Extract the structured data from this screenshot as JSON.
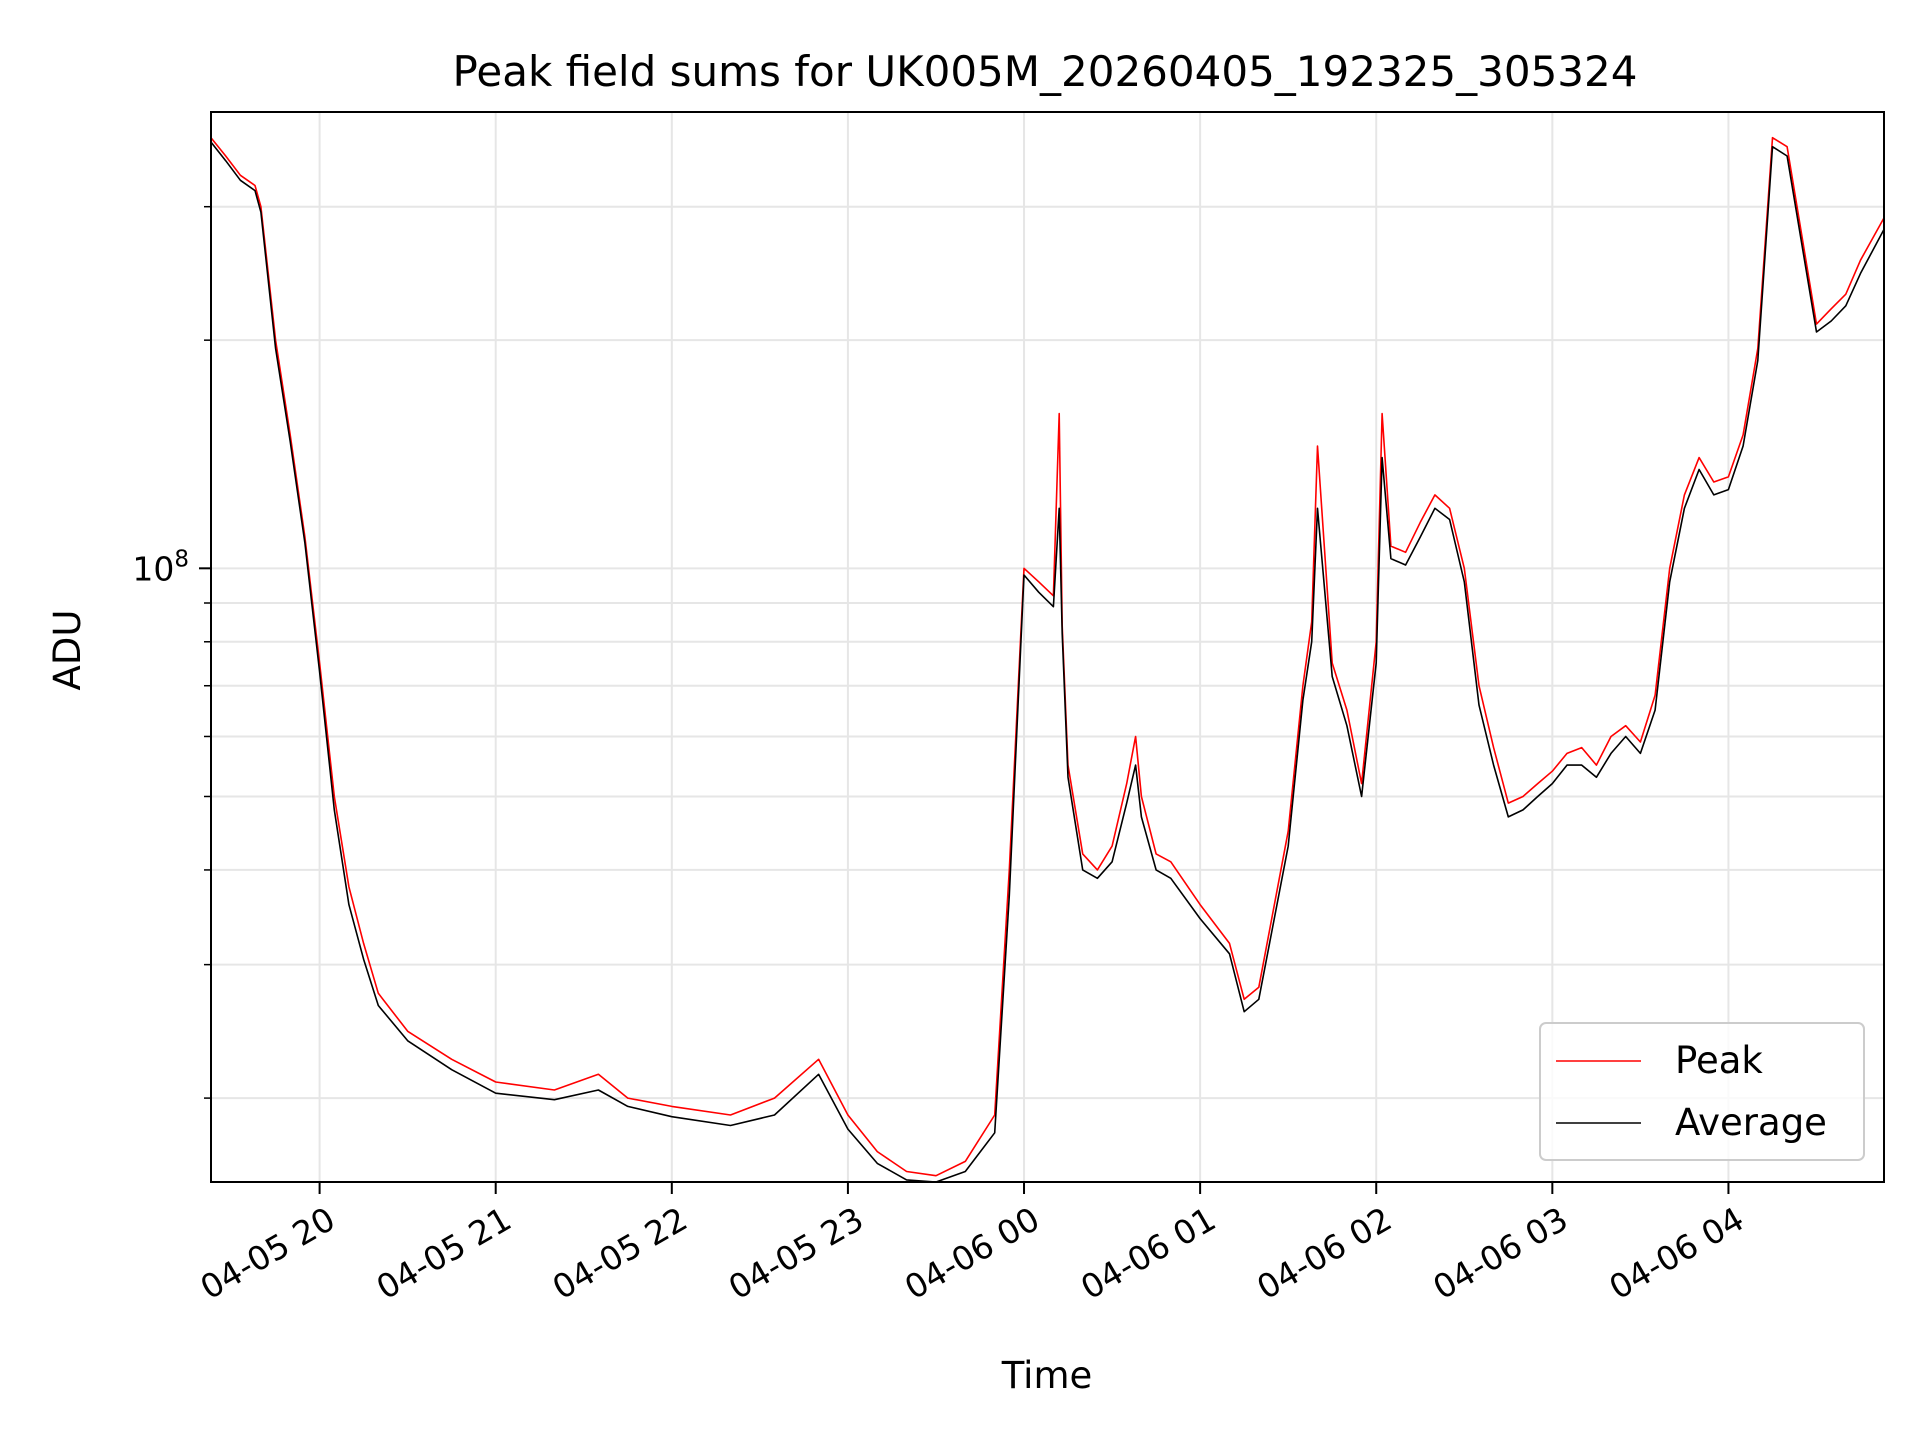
{
  "chart_data": {
    "type": "line",
    "title": "Peak field sums for UK005M_20260405_192325_305324",
    "xlabel": "Time",
    "ylabel": "ADU",
    "yscale": "log",
    "grid": true,
    "legend_position": "lower-right",
    "xlim": [
      "2026-04-05 19:23",
      "2026-04-06 04:53"
    ],
    "ylim": [
      15500000,
      400000000
    ],
    "x_tick_labels": [
      "04-05 20",
      "04-05 21",
      "04-05 22",
      "04-05 23",
      "04-06 00",
      "04-06 01",
      "04-06 02",
      "04-06 03",
      "04-06 04"
    ],
    "x_ticks": [
      "2026-04-05 20:00",
      "2026-04-05 21:00",
      "2026-04-05 22:00",
      "2026-04-05 23:00",
      "2026-04-06 00:00",
      "2026-04-06 01:00",
      "2026-04-06 02:00",
      "2026-04-06 03:00",
      "2026-04-06 04:00"
    ],
    "y_major_ticks": [
      {
        "value": 100000000,
        "label_base": "10",
        "label_exp": "8"
      }
    ],
    "y_minor_ticks": [
      20000000,
      30000000,
      40000000,
      50000000,
      60000000,
      70000000,
      80000000,
      90000000,
      200000000,
      300000000
    ],
    "series": [
      {
        "name": "Peak",
        "color": "#ff0000",
        "x": [
          "2026-04-05 19:23",
          "2026-04-05 19:28",
          "2026-04-05 19:33",
          "2026-04-05 19:38",
          "2026-04-05 19:40",
          "2026-04-05 19:45",
          "2026-04-05 19:50",
          "2026-04-05 19:55",
          "2026-04-05 20:00",
          "2026-04-05 20:05",
          "2026-04-05 20:10",
          "2026-04-05 20:15",
          "2026-04-05 20:20",
          "2026-04-05 20:30",
          "2026-04-05 20:45",
          "2026-04-05 21:00",
          "2026-04-05 21:20",
          "2026-04-05 21:35",
          "2026-04-05 21:45",
          "2026-04-05 22:00",
          "2026-04-05 22:20",
          "2026-04-05 22:35",
          "2026-04-05 22:50",
          "2026-04-05 23:00",
          "2026-04-05 23:10",
          "2026-04-05 23:20",
          "2026-04-05 23:30",
          "2026-04-05 23:40",
          "2026-04-05 23:50",
          "2026-04-05 23:55",
          "2026-04-06 00:00",
          "2026-04-06 00:05",
          "2026-04-06 00:10",
          "2026-04-06 00:12",
          "2026-04-06 00:13",
          "2026-04-06 00:15",
          "2026-04-06 00:20",
          "2026-04-06 00:25",
          "2026-04-06 00:30",
          "2026-04-06 00:35",
          "2026-04-06 00:38",
          "2026-04-06 00:40",
          "2026-04-06 00:45",
          "2026-04-06 00:50",
          "2026-04-06 01:00",
          "2026-04-06 01:10",
          "2026-04-06 01:15",
          "2026-04-06 01:20",
          "2026-04-06 01:30",
          "2026-04-06 01:35",
          "2026-04-06 01:38",
          "2026-04-06 01:40",
          "2026-04-06 01:45",
          "2026-04-06 01:50",
          "2026-04-06 01:55",
          "2026-04-06 02:00",
          "2026-04-06 02:02",
          "2026-04-06 02:05",
          "2026-04-06 02:10",
          "2026-04-06 02:15",
          "2026-04-06 02:20",
          "2026-04-06 02:25",
          "2026-04-06 02:30",
          "2026-04-06 02:35",
          "2026-04-06 02:40",
          "2026-04-06 02:45",
          "2026-04-06 02:50",
          "2026-04-06 02:55",
          "2026-04-06 03:00",
          "2026-04-06 03:05",
          "2026-04-06 03:10",
          "2026-04-06 03:15",
          "2026-04-06 03:20",
          "2026-04-06 03:25",
          "2026-04-06 03:30",
          "2026-04-06 03:35",
          "2026-04-06 03:40",
          "2026-04-06 03:45",
          "2026-04-06 03:50",
          "2026-04-06 03:55",
          "2026-04-06 04:00",
          "2026-04-06 04:05",
          "2026-04-06 04:10",
          "2026-04-06 04:15",
          "2026-04-06 04:20",
          "2026-04-06 04:30",
          "2026-04-06 04:35",
          "2026-04-06 04:40",
          "2026-04-06 04:45",
          "2026-04-06 04:53"
        ],
        "values": [
          370000000,
          350000000,
          330000000,
          320000000,
          300000000,
          200000000,
          150000000,
          110000000,
          75000000,
          50000000,
          38000000,
          32000000,
          27500000,
          24500000,
          22500000,
          21000000,
          20500000,
          21500000,
          20000000,
          19500000,
          19000000,
          20000000,
          22500000,
          19000000,
          17000000,
          16000000,
          15800000,
          16500000,
          19000000,
          40000000,
          100000000,
          96000000,
          92000000,
          160000000,
          84000000,
          55000000,
          42000000,
          40000000,
          43000000,
          52000000,
          60000000,
          50000000,
          42000000,
          41000000,
          36000000,
          32000000,
          27000000,
          28000000,
          45000000,
          70000000,
          85000000,
          145000000,
          75000000,
          65000000,
          52000000,
          80000000,
          160000000,
          107000000,
          105000000,
          115000000,
          125000000,
          120000000,
          100000000,
          70000000,
          58000000,
          49000000,
          50000000,
          52000000,
          54000000,
          57000000,
          58000000,
          55000000,
          60000000,
          62000000,
          59000000,
          68000000,
          100000000,
          125000000,
          140000000,
          130000000,
          132000000,
          150000000,
          195000000,
          370000000,
          360000000,
          210000000,
          220000000,
          230000000,
          255000000,
          290000000
        ]
      },
      {
        "name": "Average",
        "color": "#000000",
        "x": [
          "2026-04-05 19:23",
          "2026-04-05 19:28",
          "2026-04-05 19:33",
          "2026-04-05 19:38",
          "2026-04-05 19:40",
          "2026-04-05 19:45",
          "2026-04-05 19:50",
          "2026-04-05 19:55",
          "2026-04-05 20:00",
          "2026-04-05 20:05",
          "2026-04-05 20:10",
          "2026-04-05 20:15",
          "2026-04-05 20:20",
          "2026-04-05 20:30",
          "2026-04-05 20:45",
          "2026-04-05 21:00",
          "2026-04-05 21:20",
          "2026-04-05 21:35",
          "2026-04-05 21:45",
          "2026-04-05 22:00",
          "2026-04-05 22:20",
          "2026-04-05 22:35",
          "2026-04-05 22:50",
          "2026-04-05 23:00",
          "2026-04-05 23:10",
          "2026-04-05 23:20",
          "2026-04-05 23:30",
          "2026-04-05 23:40",
          "2026-04-05 23:50",
          "2026-04-05 23:55",
          "2026-04-06 00:00",
          "2026-04-06 00:05",
          "2026-04-06 00:10",
          "2026-04-06 00:12",
          "2026-04-06 00:13",
          "2026-04-06 00:15",
          "2026-04-06 00:20",
          "2026-04-06 00:25",
          "2026-04-06 00:30",
          "2026-04-06 00:35",
          "2026-04-06 00:38",
          "2026-04-06 00:40",
          "2026-04-06 00:45",
          "2026-04-06 00:50",
          "2026-04-06 01:00",
          "2026-04-06 01:10",
          "2026-04-06 01:15",
          "2026-04-06 01:20",
          "2026-04-06 01:30",
          "2026-04-06 01:35",
          "2026-04-06 01:38",
          "2026-04-06 01:40",
          "2026-04-06 01:45",
          "2026-04-06 01:50",
          "2026-04-06 01:55",
          "2026-04-06 02:00",
          "2026-04-06 02:02",
          "2026-04-06 02:05",
          "2026-04-06 02:10",
          "2026-04-06 02:15",
          "2026-04-06 02:20",
          "2026-04-06 02:25",
          "2026-04-06 02:30",
          "2026-04-06 02:35",
          "2026-04-06 02:40",
          "2026-04-06 02:45",
          "2026-04-06 02:50",
          "2026-04-06 02:55",
          "2026-04-06 03:00",
          "2026-04-06 03:05",
          "2026-04-06 03:10",
          "2026-04-06 03:15",
          "2026-04-06 03:20",
          "2026-04-06 03:25",
          "2026-04-06 03:30",
          "2026-04-06 03:35",
          "2026-04-06 03:40",
          "2026-04-06 03:45",
          "2026-04-06 03:50",
          "2026-04-06 03:55",
          "2026-04-06 04:00",
          "2026-04-06 04:05",
          "2026-04-06 04:10",
          "2026-04-06 04:15",
          "2026-04-06 04:20",
          "2026-04-06 04:30",
          "2026-04-06 04:35",
          "2026-04-06 04:40",
          "2026-04-06 04:45",
          "2026-04-06 04:53"
        ],
        "values": [
          365000000,
          345000000,
          325000000,
          315000000,
          295000000,
          195000000,
          147000000,
          108000000,
          73000000,
          48000000,
          36000000,
          30500000,
          26500000,
          23800000,
          21800000,
          20300000,
          19900000,
          20500000,
          19500000,
          18900000,
          18400000,
          19000000,
          21500000,
          18200000,
          16400000,
          15600000,
          15500000,
          16000000,
          18000000,
          37000000,
          98000000,
          93000000,
          89000000,
          120000000,
          82000000,
          53000000,
          40000000,
          39000000,
          41000000,
          49000000,
          55000000,
          47000000,
          40000000,
          39000000,
          34500000,
          31000000,
          26000000,
          27000000,
          43000000,
          67000000,
          80000000,
          120000000,
          72000000,
          62000000,
          50000000,
          75000000,
          140000000,
          103000000,
          101000000,
          110000000,
          120000000,
          116000000,
          96000000,
          66000000,
          55000000,
          47000000,
          48000000,
          50000000,
          52000000,
          55000000,
          55000000,
          53000000,
          57000000,
          60000000,
          57000000,
          65000000,
          96000000,
          120000000,
          135000000,
          125000000,
          127000000,
          145000000,
          188000000,
          360000000,
          350000000,
          205000000,
          212000000,
          222000000,
          245000000,
          280000000
        ]
      }
    ]
  }
}
